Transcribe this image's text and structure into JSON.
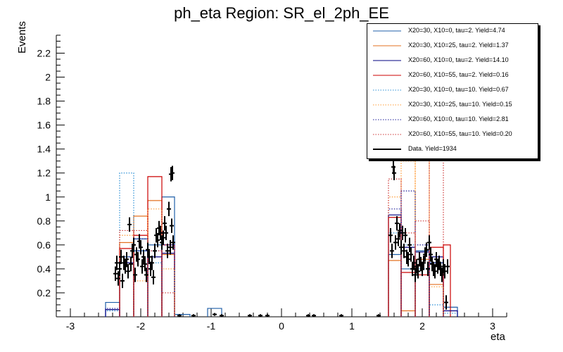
{
  "chart_data": {
    "type": "histogram",
    "title": "ph_eta Region: SR_el_2ph_EE",
    "xlabel": "eta",
    "ylabel": "Events",
    "xlim": [
      -3.2,
      3.2
    ],
    "ylim": [
      0,
      2.35
    ],
    "xticks": [
      -3,
      -2,
      -1,
      0,
      1,
      2,
      3
    ],
    "yticks": [
      0.2,
      0.4,
      0.6,
      0.8,
      1,
      1.2,
      1.4,
      1.6,
      1.8,
      2,
      2.2
    ],
    "legend_placement": "top-right",
    "series": [
      {
        "name": "X20=30, X10=0, tau=2. Yield=4.74",
        "color": "#1f5fa8",
        "style": "solid",
        "bins": [
          [
            -2.5,
            -2.3,
            0.12
          ],
          [
            -2.3,
            -2.1,
            0.5
          ],
          [
            -2.1,
            -1.9,
            0.65
          ],
          [
            -1.9,
            -1.7,
            0.6
          ],
          [
            -1.7,
            -1.52,
            1.0
          ],
          [
            -1.52,
            -1.3,
            0.02
          ],
          [
            -1.05,
            -0.85,
            0.07
          ],
          [
            1.52,
            1.7,
            0.52
          ],
          [
            1.7,
            1.9,
            0.4
          ],
          [
            1.9,
            2.1,
            0.55
          ],
          [
            2.1,
            2.3,
            0.45
          ],
          [
            2.3,
            2.5,
            0.08
          ]
        ]
      },
      {
        "name": "X20=30, X10=25, tau=2. Yield=1.37",
        "color": "#e37222",
        "style": "solid",
        "bins": [
          [
            -2.3,
            -2.1,
            0.62
          ],
          [
            -2.1,
            -1.9,
            0.84
          ],
          [
            -1.9,
            -1.7,
            0.97
          ],
          [
            -1.7,
            -1.52,
            0.52
          ],
          [
            1.52,
            1.7,
            0.47
          ],
          [
            1.7,
            1.9,
            0.05
          ],
          [
            1.9,
            2.1,
            0.48
          ],
          [
            2.1,
            2.3,
            0.27
          ]
        ]
      },
      {
        "name": "X20=60, X10=0, tau=2. Yield=14.10",
        "color": "#000080",
        "style": "solid",
        "bins": [
          [
            -2.5,
            -2.3,
            0.06
          ],
          [
            -2.3,
            -2.1,
            0.45
          ],
          [
            -2.1,
            -1.9,
            0.55
          ],
          [
            -1.9,
            -1.7,
            0.5
          ],
          [
            -1.7,
            -1.52,
            0.53
          ],
          [
            1.52,
            1.7,
            0.85
          ],
          [
            1.7,
            1.9,
            0.58
          ],
          [
            1.9,
            2.1,
            0.54
          ],
          [
            2.1,
            2.3,
            0.5
          ],
          [
            2.3,
            2.5,
            0.05
          ]
        ]
      },
      {
        "name": "X20=60, X10=55, tau=2. Yield=0.16",
        "color": "#cc0000",
        "style": "solid",
        "bins": [
          [
            -2.3,
            -2.1,
            0.57
          ],
          [
            -2.1,
            -1.9,
            0.68
          ],
          [
            -1.9,
            -1.7,
            1.17
          ],
          [
            -1.7,
            -1.52,
            0.6
          ],
          [
            1.52,
            1.7,
            0.83
          ],
          [
            1.7,
            1.9,
            0.37
          ],
          [
            1.9,
            2.1,
            0.35
          ],
          [
            2.1,
            2.3,
            0.58
          ],
          [
            2.3,
            2.4,
            0.6
          ]
        ]
      },
      {
        "name": "X20=30, X10=0, tau=10. Yield=0.67",
        "color": "#2a8fd6",
        "style": "dotted",
        "bins": [
          [
            -2.5,
            -2.3,
            0.05
          ],
          [
            -2.3,
            -2.1,
            1.2
          ],
          [
            -2.1,
            -1.9,
            0.55
          ],
          [
            -1.9,
            -1.7,
            0.45
          ],
          [
            -1.7,
            -1.52,
            0.6
          ],
          [
            1.52,
            1.7,
            0.7
          ],
          [
            1.7,
            1.9,
            0.6
          ],
          [
            1.9,
            2.1,
            0.4
          ],
          [
            2.1,
            2.3,
            0.1
          ],
          [
            2.3,
            2.5,
            0.03
          ]
        ]
      },
      {
        "name": "X20=30, X10=25, tau=10. Yield=0.15",
        "color": "#ff9933",
        "style": "dotted",
        "bins": [
          [
            -2.3,
            -2.1,
            0.68
          ],
          [
            -2.1,
            -1.9,
            0.3
          ],
          [
            -1.9,
            -1.7,
            0.9
          ],
          [
            -1.7,
            -1.52,
            0.4
          ],
          [
            1.52,
            1.7,
            1.0
          ],
          [
            1.7,
            1.9,
            1.3
          ],
          [
            1.9,
            2.1,
            1.4
          ],
          [
            2.1,
            2.3,
            0.25
          ]
        ]
      },
      {
        "name": "X20=60, X10=0, tau=10. Yield=2.81",
        "color": "#1a1a99",
        "style": "dotted",
        "bins": [
          [
            -2.5,
            -2.3,
            0.07
          ],
          [
            -2.3,
            -2.1,
            0.5
          ],
          [
            -2.1,
            -1.9,
            0.65
          ],
          [
            -1.9,
            -1.7,
            0.55
          ],
          [
            -1.7,
            -1.52,
            0.6
          ],
          [
            1.52,
            1.7,
            0.9
          ],
          [
            1.7,
            1.9,
            1.05
          ],
          [
            1.9,
            2.1,
            0.6
          ],
          [
            2.1,
            2.3,
            0.45
          ],
          [
            2.3,
            2.5,
            0.05
          ]
        ]
      },
      {
        "name": "X20=60, X10=55, tau=10. Yield=0.20",
        "color": "#cc3333",
        "style": "dotted",
        "bins": [
          [
            -2.3,
            -2.1,
            0.72
          ],
          [
            -2.1,
            -1.9,
            0.72
          ],
          [
            -1.9,
            -1.7,
            0.55
          ],
          [
            -1.7,
            -1.52,
            0.2
          ],
          [
            1.52,
            1.7,
            1.15
          ],
          [
            1.7,
            1.9,
            0.7
          ],
          [
            1.9,
            2.1,
            0.8
          ],
          [
            2.1,
            2.3,
            1.5
          ]
        ]
      }
    ],
    "data_series": {
      "name": "Data. Yield=1934",
      "color": "#000000",
      "points": [
        [
          -2.36,
          0.36
        ],
        [
          -2.34,
          0.45
        ],
        [
          -2.32,
          0.32
        ],
        [
          -2.3,
          0.4
        ],
        [
          -2.28,
          0.5
        ],
        [
          -2.26,
          0.3
        ],
        [
          -2.24,
          0.45
        ],
        [
          -2.22,
          0.42
        ],
        [
          -2.2,
          0.48
        ],
        [
          -2.18,
          0.38
        ],
        [
          -2.16,
          0.77
        ],
        [
          -2.14,
          0.44
        ],
        [
          -2.12,
          0.55
        ],
        [
          -2.1,
          0.6
        ],
        [
          -2.08,
          0.35
        ],
        [
          -2.06,
          0.52
        ],
        [
          -2.04,
          0.48
        ],
        [
          -2.02,
          0.63
        ],
        [
          -2.0,
          0.58
        ],
        [
          -1.98,
          0.42
        ],
        [
          -1.96,
          0.5
        ],
        [
          -1.94,
          0.44
        ],
        [
          -1.92,
          0.35
        ],
        [
          -1.9,
          0.56
        ],
        [
          -1.88,
          0.5
        ],
        [
          -1.86,
          0.4
        ],
        [
          -1.84,
          0.45
        ],
        [
          -1.82,
          0.33
        ],
        [
          -1.8,
          0.55
        ],
        [
          -1.78,
          0.68
        ],
        [
          -1.76,
          0.64
        ],
        [
          -1.74,
          0.74
        ],
        [
          -1.72,
          0.7
        ],
        [
          -1.7,
          0.62
        ],
        [
          -1.68,
          0.66
        ],
        [
          -1.66,
          0.78
        ],
        [
          -1.64,
          0.7
        ],
        [
          -1.62,
          0.55
        ],
        [
          -1.6,
          0.9
        ],
        [
          -1.58,
          0.58
        ],
        [
          -1.56,
          0.76
        ],
        [
          -1.57,
          1.19
        ],
        [
          -1.55,
          1.2
        ],
        [
          -1.54,
          0.62
        ],
        [
          -1.45,
          0.01
        ],
        [
          -1.25,
          0.01
        ],
        [
          -0.95,
          0.02
        ],
        [
          -0.85,
          0.01
        ],
        [
          -0.45,
          0.01
        ],
        [
          -0.3,
          0.01
        ],
        [
          -0.2,
          0.01
        ],
        [
          0.38,
          0.01
        ],
        [
          0.46,
          0.01
        ],
        [
          0.85,
          0.01
        ],
        [
          1.38,
          0.01
        ],
        [
          1.55,
          0.68
        ],
        [
          1.57,
          0.55
        ],
        [
          1.59,
          1.25
        ],
        [
          1.6,
          1.2
        ],
        [
          1.62,
          0.62
        ],
        [
          1.64,
          0.78
        ],
        [
          1.66,
          0.65
        ],
        [
          1.68,
          0.72
        ],
        [
          1.7,
          0.58
        ],
        [
          1.72,
          0.7
        ],
        [
          1.74,
          0.55
        ],
        [
          1.76,
          0.68
        ],
        [
          1.78,
          0.5
        ],
        [
          1.8,
          0.48
        ],
        [
          1.82,
          0.6
        ],
        [
          1.84,
          0.52
        ],
        [
          1.86,
          0.4
        ],
        [
          1.88,
          0.45
        ],
        [
          1.9,
          0.35
        ],
        [
          1.92,
          0.42
        ],
        [
          1.94,
          0.38
        ],
        [
          1.96,
          0.48
        ],
        [
          1.98,
          0.44
        ],
        [
          2.0,
          0.4
        ],
        [
          2.02,
          0.45
        ],
        [
          2.04,
          0.52
        ],
        [
          2.06,
          0.56
        ],
        [
          2.08,
          0.4
        ],
        [
          2.1,
          0.62
        ],
        [
          2.12,
          0.52
        ],
        [
          2.14,
          0.44
        ],
        [
          2.16,
          0.4
        ],
        [
          2.18,
          0.38
        ],
        [
          2.2,
          0.48
        ],
        [
          2.22,
          0.42
        ],
        [
          2.24,
          0.45
        ],
        [
          2.26,
          0.4
        ],
        [
          2.28,
          0.35
        ],
        [
          2.3,
          0.42
        ],
        [
          2.32,
          0.38
        ],
        [
          2.34,
          0.12
        ],
        [
          2.36,
          0.42
        ]
      ]
    }
  }
}
